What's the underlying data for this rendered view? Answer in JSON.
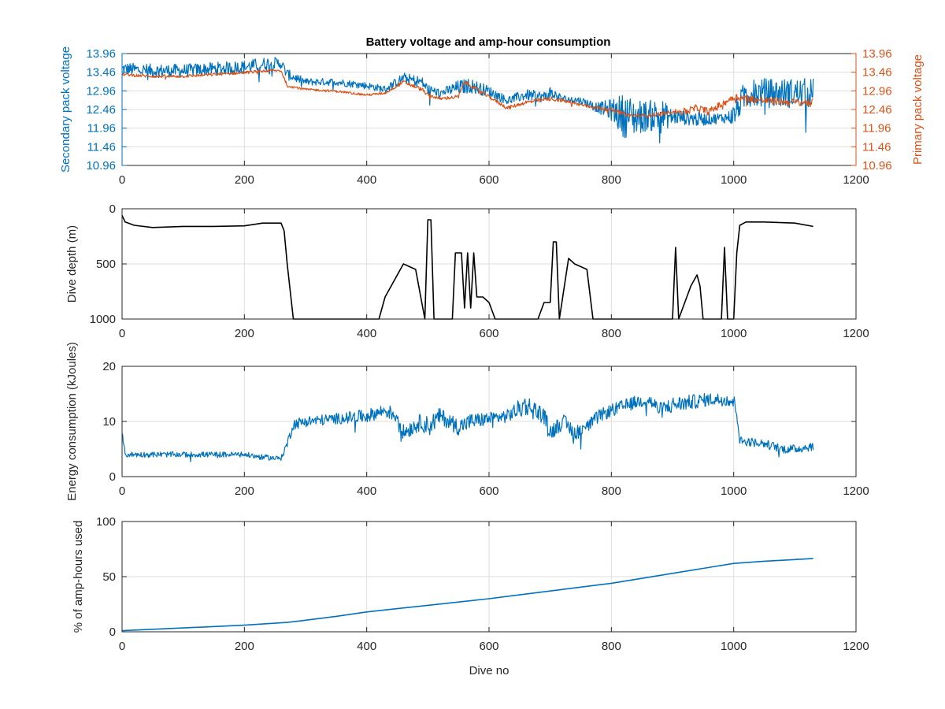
{
  "figure": {
    "title": "Battery voltage and amp-hour consumption",
    "colors": {
      "blue": "#0072BD",
      "orange": "#D95319",
      "black": "#000000",
      "grid": "#DEDEDE",
      "axis": "#262626"
    }
  },
  "chart_data": [
    {
      "type": "line",
      "title": "Battery voltage and amp-hour consumption",
      "xlabel": "",
      "ylabel": "Secondary pack voltage",
      "ylabel_right": "Primary pack voltage",
      "xlim": [
        0,
        1200
      ],
      "ylim": [
        10.96,
        13.96
      ],
      "x_ticks": [
        "0",
        "200",
        "400",
        "600",
        "800",
        "1000",
        "1200"
      ],
      "y_ticks": [
        "10.96",
        "11.46",
        "11.96",
        "12.46",
        "12.96",
        "13.46",
        "13.96"
      ],
      "y_ticks_right": [
        "10.96",
        "11.46",
        "11.96",
        "12.46",
        "12.96",
        "13.46",
        "13.96"
      ],
      "grid": true,
      "series": [
        {
          "color": "#0072BD",
          "x": [
            0,
            50,
            100,
            150,
            200,
            240,
            260,
            270,
            300,
            350,
            400,
            430,
            460,
            490,
            500,
            520,
            550,
            570,
            600,
            630,
            660,
            690,
            700,
            720,
            750,
            780,
            800,
            820,
            840,
            860,
            880,
            900,
            920,
            940,
            960,
            990,
            1000,
            1020,
            1050,
            1080,
            1100,
            1130
          ],
          "y": [
            13.55,
            13.5,
            13.5,
            13.55,
            13.6,
            13.7,
            13.7,
            13.4,
            13.2,
            13.2,
            13.1,
            13.0,
            13.3,
            13.2,
            13.0,
            12.9,
            13.05,
            13.1,
            12.95,
            12.7,
            12.85,
            12.8,
            12.9,
            12.75,
            12.7,
            12.5,
            12.45,
            12.3,
            12.25,
            12.3,
            12.3,
            12.25,
            12.25,
            12.2,
            12.2,
            12.25,
            12.3,
            12.9,
            12.9,
            12.9,
            12.9,
            12.9
          ],
          "noise": [
            0.18,
            0.18,
            0.18,
            0.18,
            0.18,
            0.18,
            0.15,
            0.15,
            0.1,
            0.1,
            0.1,
            0.1,
            0.15,
            0.15,
            0.15,
            0.1,
            0.2,
            0.2,
            0.15,
            0.12,
            0.15,
            0.15,
            0.2,
            0.1,
            0.1,
            0.15,
            0.3,
            0.6,
            0.5,
            0.4,
            0.5,
            0.2,
            0.2,
            0.2,
            0.15,
            0.15,
            0.3,
            0.4,
            0.4,
            0.4,
            0.4,
            0.4
          ]
        },
        {
          "color": "#D95319",
          "axis": "right",
          "x": [
            0,
            50,
            100,
            150,
            200,
            240,
            260,
            270,
            300,
            350,
            400,
            430,
            460,
            490,
            500,
            520,
            550,
            560,
            600,
            630,
            660,
            700,
            720,
            760,
            800,
            830,
            860,
            880,
            900,
            920,
            940,
            960,
            1000,
            1050,
            1100,
            1130
          ],
          "y": [
            13.4,
            13.35,
            13.35,
            13.4,
            13.45,
            13.5,
            13.5,
            13.1,
            13.0,
            12.95,
            12.85,
            12.9,
            13.2,
            13.0,
            12.85,
            12.75,
            12.8,
            13.2,
            12.8,
            12.5,
            12.65,
            12.75,
            12.7,
            12.55,
            12.45,
            12.3,
            12.3,
            12.35,
            12.4,
            12.4,
            12.5,
            12.4,
            12.8,
            12.7,
            12.65,
            12.65
          ],
          "noise": [
            0.04,
            0.04,
            0.04,
            0.04,
            0.04,
            0.04,
            0.04,
            0.04,
            0.03,
            0.03,
            0.03,
            0.03,
            0.05,
            0.05,
            0.05,
            0.04,
            0.05,
            0.05,
            0.05,
            0.05,
            0.05,
            0.06,
            0.05,
            0.05,
            0.05,
            0.05,
            0.05,
            0.05,
            0.05,
            0.1,
            0.1,
            0.1,
            0.1,
            0.1,
            0.1,
            0.1
          ]
        }
      ]
    },
    {
      "type": "line",
      "xlabel": "",
      "ylabel": "Dive depth (m)",
      "xlim": [
        0,
        1200
      ],
      "ylim": [
        0,
        1000
      ],
      "y_reversed": true,
      "x_ticks": [
        "0",
        "200",
        "400",
        "600",
        "800",
        "1000",
        "1200"
      ],
      "y_ticks": [
        "0",
        "500",
        "1000"
      ],
      "grid": true,
      "series": [
        {
          "color": "#000000",
          "x": [
            0,
            5,
            20,
            50,
            100,
            150,
            200,
            230,
            260,
            265,
            270,
            280,
            300,
            400,
            420,
            430,
            460,
            480,
            490,
            495,
            500,
            505,
            510,
            540,
            545,
            555,
            560,
            565,
            570,
            575,
            580,
            590,
            600,
            610,
            680,
            690,
            700,
            705,
            710,
            715,
            730,
            740,
            760,
            770,
            790,
            800,
            900,
            905,
            910,
            930,
            940,
            945,
            950,
            960,
            980,
            985,
            990,
            1000,
            1005,
            1010,
            1020,
            1050,
            1100,
            1130
          ],
          "y": [
            60,
            120,
            150,
            170,
            160,
            160,
            155,
            130,
            130,
            200,
            500,
            1000,
            1000,
            1000,
            1000,
            800,
            500,
            550,
            850,
            1000,
            100,
            100,
            1000,
            1000,
            400,
            400,
            900,
            400,
            900,
            400,
            800,
            800,
            850,
            1000,
            1000,
            850,
            850,
            300,
            300,
            1000,
            450,
            500,
            550,
            1000,
            1000,
            1000,
            1000,
            350,
            1000,
            700,
            600,
            700,
            1000,
            1000,
            1000,
            350,
            1000,
            1000,
            400,
            150,
            120,
            120,
            130,
            160
          ]
        }
      ]
    },
    {
      "type": "line",
      "xlabel": "",
      "ylabel": "Energy consumption (kJoules)",
      "xlim": [
        0,
        1200
      ],
      "ylim": [
        0,
        20
      ],
      "x_ticks": [
        "0",
        "200",
        "400",
        "600",
        "800",
        "1000",
        "1200"
      ],
      "y_ticks": [
        "0",
        "10",
        "20"
      ],
      "grid": true,
      "series": [
        {
          "color": "#0072BD",
          "x": [
            0,
            5,
            20,
            100,
            200,
            230,
            260,
            270,
            280,
            300,
            350,
            400,
            430,
            450,
            460,
            490,
            500,
            520,
            550,
            570,
            600,
            630,
            660,
            690,
            700,
            720,
            740,
            760,
            780,
            800,
            840,
            860,
            880,
            900,
            960,
            990,
            1000,
            1005,
            1010,
            1050,
            1080,
            1100,
            1130
          ],
          "y": [
            8,
            4,
            4,
            4,
            4,
            3.5,
            3.3,
            6,
            9.5,
            10,
            10.5,
            11,
            12,
            11,
            8,
            10,
            9,
            11,
            9,
            10,
            10.5,
            11,
            13,
            11,
            8,
            10,
            8,
            9,
            11,
            12,
            13.5,
            14,
            12,
            13,
            14,
            14,
            13.5,
            12,
            6.5,
            6,
            5,
            5,
            5.5
          ],
          "noise": [
            0.5,
            0.5,
            0.5,
            0.5,
            0.5,
            0.5,
            0.4,
            0.8,
            1,
            1,
            1,
            1.2,
            1.2,
            1.5,
            1.5,
            1.5,
            2,
            1.5,
            1.5,
            1.5,
            1.2,
            1.2,
            2,
            1.5,
            1.5,
            1.5,
            1.5,
            1.2,
            1.2,
            1.2,
            1.2,
            1.2,
            1.5,
            1.5,
            1.2,
            1.2,
            1.5,
            1.5,
            0.8,
            0.8,
            0.8,
            0.8,
            0.8
          ]
        }
      ]
    },
    {
      "type": "line",
      "xlabel": "Dive no",
      "ylabel": "% of amp-hours used",
      "xlim": [
        0,
        1200
      ],
      "ylim": [
        0,
        100
      ],
      "x_ticks": [
        "0",
        "200",
        "400",
        "600",
        "800",
        "1000",
        "1200"
      ],
      "y_ticks": [
        "0",
        "50",
        "100"
      ],
      "grid": true,
      "series": [
        {
          "color": "#0072BD",
          "x": [
            0,
            100,
            200,
            270,
            300,
            350,
            400,
            500,
            600,
            700,
            800,
            900,
            1000,
            1050,
            1100,
            1130
          ],
          "y": [
            1,
            3.5,
            6,
            8.5,
            10.5,
            14,
            18,
            24,
            30,
            37,
            44,
            53,
            62,
            64,
            65.5,
            66.5
          ]
        }
      ]
    }
  ]
}
